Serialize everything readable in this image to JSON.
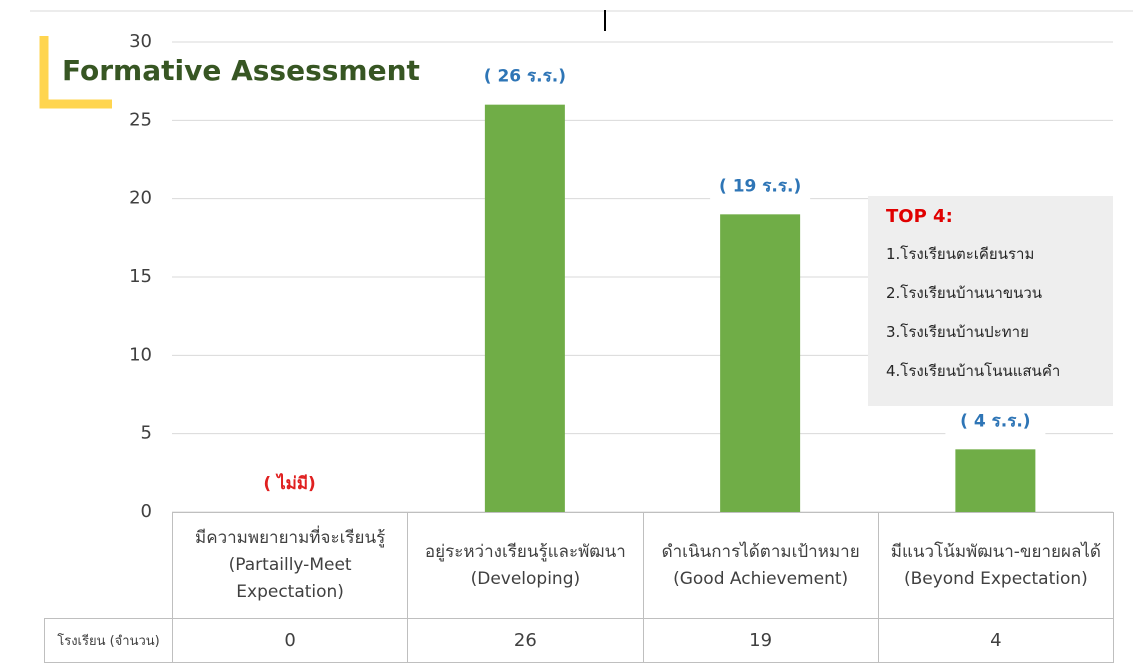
{
  "chart_data": {
    "type": "bar",
    "title": "Formative Assessment",
    "categories": [
      "มีความพยายามที่จะเรียนรู้\n(Partailly-Meet\nExpectation)",
      "อยู่ระหว่างเรียนรู้และพัฒนา\n(Developing)",
      "ดำเนินการได้ตามเป้าหมาย\n(Good Achievement)",
      "มีแนวโน้มพัฒนา-ขยายผลได้\n(Beyond Expectation)"
    ],
    "values": [
      0,
      26,
      19,
      4
    ],
    "value_labels": [
      "( ไม่มี)",
      "( 26 ร.ร.)",
      "( 19 ร.ร.)",
      "( 4 ร.ร.)"
    ],
    "value_label_colors": [
      "#e02020",
      "#2e75b6",
      "#2e75b6",
      "#2e75b6"
    ],
    "color": "#70ad47",
    "ylim": [
      0,
      30
    ],
    "yticks": [
      0,
      5,
      10,
      15,
      20,
      25,
      30
    ],
    "grid": true,
    "table_row_label": "โรงเรียน (จำนวน)",
    "annotation": {
      "title": "TOP 4:",
      "items": [
        "1.โรงเรียนตะเคียนราม",
        "2.โรงเรียนบ้านนาขนวน",
        "3.โรงเรียนบ้านปะทาย",
        "4.โรงเรียนบ้านโนนแสนคำ"
      ]
    }
  }
}
